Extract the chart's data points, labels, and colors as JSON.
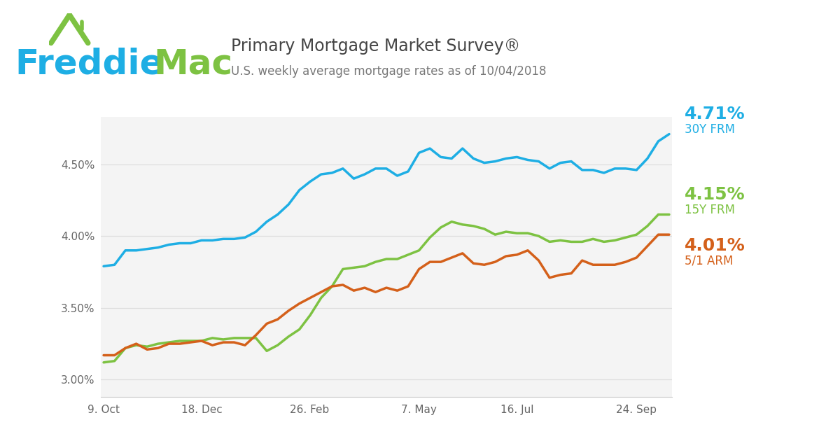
{
  "title": "Primary Mortgage Market Survey®",
  "subtitle": "U.S. weekly average mortgage rates as of 10/04/2018",
  "freddie_blue": "#1EAEE4",
  "freddie_green": "#7DC242",
  "line_blue": "#1EAEE4",
  "line_green": "#7DC242",
  "line_orange": "#D4601A",
  "bg_color": "#FFFFFF",
  "plot_bg": "#F4F4F4",
  "grid_color": "#DDDDDD",
  "text_dark": "#444444",
  "text_mid": "#777777",
  "label_30y": "4.71%",
  "label_15y": "4.15%",
  "label_arm": "4.01%",
  "name_30y": "30Y FRM",
  "name_15y": "15Y FRM",
  "name_arm": "5/1 ARM",
  "yticks": [
    3.0,
    3.5,
    4.0,
    4.5
  ],
  "xtick_labels": [
    "9. Oct",
    "18. Dec",
    "26. Feb",
    "7. May",
    "16. Jul",
    "24. Sep"
  ],
  "y_min": 2.88,
  "y_max": 4.83,
  "30y_frm": [
    3.79,
    3.8,
    3.9,
    3.9,
    3.91,
    3.92,
    3.94,
    3.95,
    3.95,
    3.97,
    3.97,
    3.98,
    3.98,
    3.99,
    4.03,
    4.1,
    4.15,
    4.22,
    4.32,
    4.38,
    4.43,
    4.44,
    4.47,
    4.4,
    4.43,
    4.47,
    4.47,
    4.42,
    4.45,
    4.58,
    4.61,
    4.55,
    4.54,
    4.61,
    4.54,
    4.51,
    4.52,
    4.54,
    4.55,
    4.53,
    4.52,
    4.47,
    4.51,
    4.52,
    4.46,
    4.46,
    4.44,
    4.47,
    4.47,
    4.46,
    4.54,
    4.66,
    4.71
  ],
  "15y_frm": [
    3.12,
    3.13,
    3.22,
    3.24,
    3.23,
    3.25,
    3.26,
    3.27,
    3.27,
    3.27,
    3.29,
    3.28,
    3.29,
    3.29,
    3.29,
    3.2,
    3.24,
    3.3,
    3.35,
    3.45,
    3.57,
    3.65,
    3.77,
    3.78,
    3.79,
    3.82,
    3.84,
    3.84,
    3.87,
    3.9,
    3.99,
    4.06,
    4.1,
    4.08,
    4.07,
    4.05,
    4.01,
    4.03,
    4.02,
    4.02,
    4.0,
    3.96,
    3.97,
    3.96,
    3.96,
    3.98,
    3.96,
    3.97,
    3.99,
    4.01,
    4.07,
    4.15,
    4.15
  ],
  "arm_51": [
    3.17,
    3.17,
    3.22,
    3.25,
    3.21,
    3.22,
    3.25,
    3.25,
    3.26,
    3.27,
    3.24,
    3.26,
    3.26,
    3.24,
    3.31,
    3.39,
    3.42,
    3.48,
    3.53,
    3.57,
    3.61,
    3.65,
    3.66,
    3.62,
    3.64,
    3.61,
    3.64,
    3.62,
    3.65,
    3.77,
    3.82,
    3.82,
    3.85,
    3.88,
    3.81,
    3.8,
    3.82,
    3.86,
    3.87,
    3.9,
    3.83,
    3.71,
    3.73,
    3.74,
    3.83,
    3.8,
    3.8,
    3.8,
    3.82,
    3.85,
    3.93,
    4.01,
    4.01
  ]
}
